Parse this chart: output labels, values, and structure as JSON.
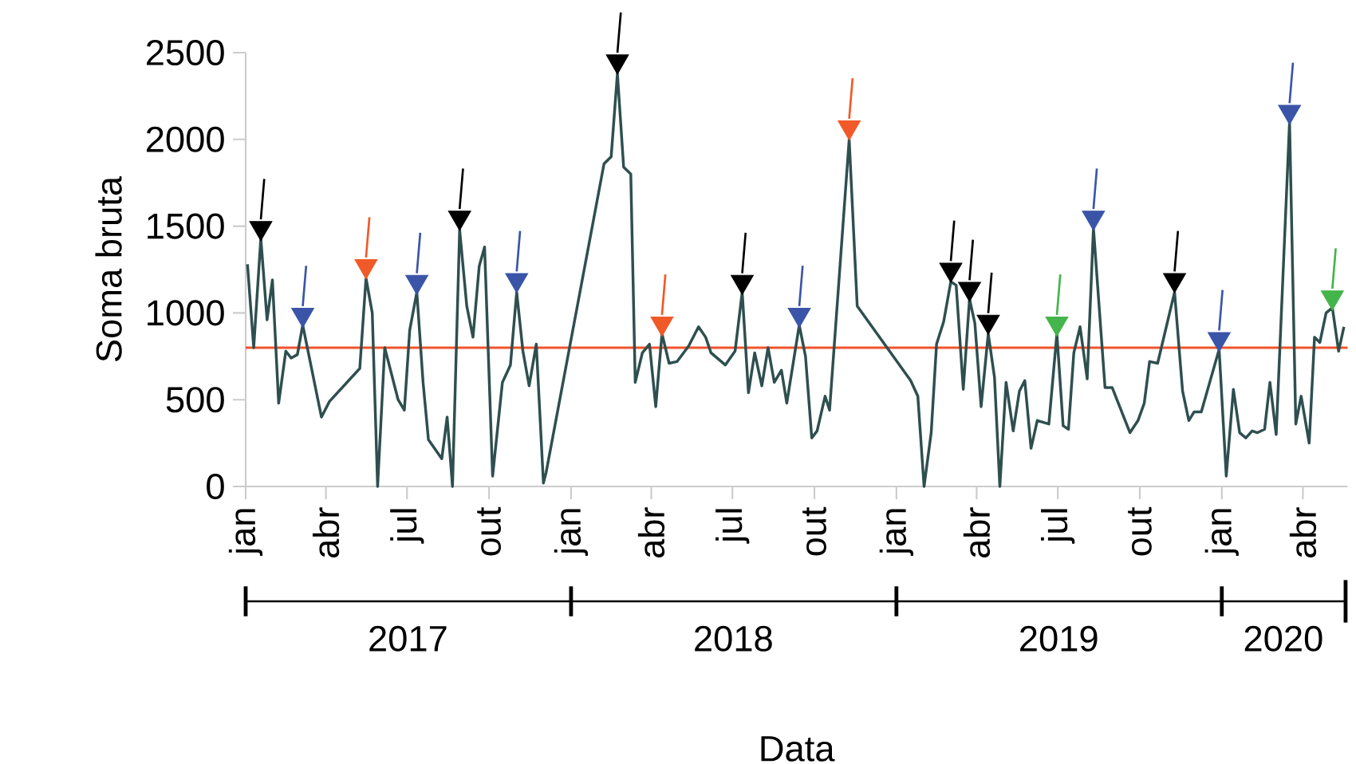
{
  "chart_data": {
    "type": "line",
    "xlabel": "Data",
    "ylabel": "Soma bruta",
    "xlim": [
      "2017-01-01",
      "2020-05-21"
    ],
    "ylim": [
      0,
      2500
    ],
    "xticks": [
      {
        "value": "2017-01-01",
        "label": "jan"
      },
      {
        "value": "2017-04-01",
        "label": "abr"
      },
      {
        "value": "2017-07-01",
        "label": "jul"
      },
      {
        "value": "2017-10-01",
        "label": "out"
      },
      {
        "value": "2018-01-01",
        "label": "jan"
      },
      {
        "value": "2018-04-01",
        "label": "abr"
      },
      {
        "value": "2018-07-01",
        "label": "jul"
      },
      {
        "value": "2018-10-01",
        "label": "out"
      },
      {
        "value": "2019-01-01",
        "label": "jan"
      },
      {
        "value": "2019-04-01",
        "label": "abr"
      },
      {
        "value": "2019-07-01",
        "label": "jul"
      },
      {
        "value": "2019-10-01",
        "label": "out"
      },
      {
        "value": "2020-01-01",
        "label": "jan"
      },
      {
        "value": "2020-04-01",
        "label": "abr"
      }
    ],
    "yticks": [
      0,
      500,
      1000,
      1500,
      2000,
      2500
    ],
    "x2lim": [
      "2017-01-01",
      "2020-05-21"
    ],
    "x2ticks": [
      {
        "value": "2017-01-01",
        "label": null
      },
      {
        "value": "2018-01-01",
        "label": null
      },
      {
        "value": "2019-01-01",
        "label": null
      },
      {
        "value": "2020-01-01",
        "label": null
      },
      {
        "value": "2017-07-02",
        "label": "2017"
      },
      {
        "value": "2018-07-02",
        "label": "2018"
      },
      {
        "value": "2019-07-02",
        "label": "2019"
      },
      {
        "value": "2020-03-10",
        "label": "2020"
      }
    ],
    "ref_lines": [
      {
        "axis": "y",
        "value": 800,
        "color": "#f0542c"
      }
    ],
    "series": [
      {
        "color": "#2f4f4f",
        "x": [
          "2017-01-03",
          "2017-01-10",
          "2017-01-18",
          "2017-01-25",
          "2017-01-31",
          "2017-02-07",
          "2017-02-15",
          "2017-02-21",
          "2017-02-28",
          "2017-03-06",
          "2017-03-27",
          "2017-04-05",
          "2017-05-09",
          "2017-05-16",
          "2017-05-23",
          "2017-05-29",
          "2017-06-06",
          "2017-06-21",
          "2017-06-28",
          "2017-07-04",
          "2017-07-12",
          "2017-07-19",
          "2017-07-25",
          "2017-08-09",
          "2017-08-15",
          "2017-08-21",
          "2017-08-29",
          "2017-09-06",
          "2017-09-13",
          "2017-09-20",
          "2017-09-26",
          "2017-10-05",
          "2017-10-16",
          "2017-10-25",
          "2017-11-01",
          "2017-11-08",
          "2017-11-15",
          "2017-11-23",
          "2017-12-01",
          "2017-12-04",
          "2018-02-07",
          "2018-02-15",
          "2018-02-22",
          "2018-03-01",
          "2018-03-09",
          "2018-03-14",
          "2018-03-22",
          "2018-03-30",
          "2018-04-06",
          "2018-04-13",
          "2018-04-21",
          "2018-04-30",
          "2018-05-13",
          "2018-05-24",
          "2018-06-01",
          "2018-06-07",
          "2018-06-23",
          "2018-07-04",
          "2018-07-12",
          "2018-07-19",
          "2018-07-26",
          "2018-08-03",
          "2018-08-10",
          "2018-08-17",
          "2018-08-25",
          "2018-08-31",
          "2018-09-14",
          "2018-09-21",
          "2018-09-28",
          "2018-10-04",
          "2018-10-13",
          "2018-10-18",
          "2018-11-09",
          "2018-11-18",
          "2019-01-17",
          "2019-01-25",
          "2019-02-01",
          "2019-02-09",
          "2019-02-15",
          "2019-02-23",
          "2019-03-03",
          "2019-03-09",
          "2019-03-17",
          "2019-03-24",
          "2019-03-30",
          "2019-04-06",
          "2019-04-14",
          "2019-04-21",
          "2019-04-27",
          "2019-05-04",
          "2019-05-12",
          "2019-05-19",
          "2019-05-25",
          "2019-06-01",
          "2019-06-08",
          "2019-06-21",
          "2019-06-30",
          "2019-07-07",
          "2019-07-13",
          "2019-07-19",
          "2019-07-26",
          "2019-08-03",
          "2019-08-10",
          "2019-08-23",
          "2019-08-31",
          "2019-09-20",
          "2019-09-29",
          "2019-10-06",
          "2019-10-12",
          "2019-10-21",
          "2019-11-09",
          "2019-11-18",
          "2019-11-25",
          "2019-12-01",
          "2019-12-09",
          "2019-12-29",
          "2020-01-06",
          "2020-01-14",
          "2020-01-21",
          "2020-01-28",
          "2020-02-04",
          "2020-02-10",
          "2020-02-18",
          "2020-02-24",
          "2020-03-02",
          "2020-03-17",
          "2020-03-24",
          "2020-03-30",
          "2020-04-08",
          "2020-04-14",
          "2020-04-20",
          "2020-04-27",
          "2020-05-04",
          "2020-05-11",
          "2020-05-17"
        ],
        "values": [
          1280,
          800,
          1430,
          960,
          1190,
          480,
          780,
          740,
          760,
          930,
          400,
          490,
          680,
          1200,
          1000,
          0,
          800,
          500,
          440,
          900,
          1120,
          600,
          270,
          160,
          400,
          0,
          1480,
          1040,
          860,
          1270,
          1380,
          60,
          600,
          700,
          1120,
          780,
          580,
          820,
          20,
          80,
          1860,
          1900,
          2380,
          1840,
          1800,
          600,
          770,
          820,
          460,
          880,
          710,
          720,
          810,
          920,
          860,
          770,
          700,
          780,
          1120,
          540,
          770,
          580,
          800,
          600,
          670,
          480,
          930,
          750,
          280,
          320,
          520,
          440,
          2000,
          1040,
          610,
          520,
          0,
          310,
          820,
          950,
          1180,
          1160,
          560,
          1080,
          940,
          460,
          880,
          630,
          0,
          600,
          320,
          550,
          610,
          220,
          380,
          360,
          880,
          350,
          330,
          770,
          920,
          620,
          1490,
          570,
          570,
          310,
          380,
          480,
          720,
          710,
          1120,
          550,
          380,
          430,
          430,
          790,
          60,
          560,
          310,
          280,
          320,
          310,
          330,
          600,
          300,
          2100,
          360,
          520,
          250,
          860,
          830,
          1000,
          1030,
          780,
          920
        ]
      },
      {
        "type": "scatter",
        "marker": "triangle",
        "color": "#000000",
        "x": [
          "2017-01-18",
          "2017-08-29",
          "2018-02-22",
          "2018-07-12",
          "2019-03-03",
          "2019-03-24",
          "2019-04-14",
          "2019-11-09"
        ],
        "values": [
          1490,
          1550,
          2450,
          1180,
          1250,
          1140,
          950,
          1190
        ]
      },
      {
        "type": "scatter",
        "marker": "triangle",
        "color": "#3a55a8",
        "x": [
          "2017-03-06",
          "2017-07-12",
          "2017-11-01",
          "2018-09-14",
          "2019-08-10",
          "2019-12-29",
          "2020-03-17"
        ],
        "values": [
          990,
          1180,
          1190,
          990,
          1550,
          850,
          2160
        ]
      },
      {
        "type": "scatter",
        "marker": "triangle",
        "color": "#f05a28",
        "x": [
          "2017-05-16",
          "2018-04-13",
          "2018-11-09"
        ],
        "values": [
          1270,
          940,
          2070
        ]
      },
      {
        "type": "scatter",
        "marker": "triangle",
        "color": "#44b54a",
        "x": [
          "2019-06-30",
          "2020-05-04"
        ],
        "values": [
          940,
          1090
        ]
      }
    ]
  }
}
